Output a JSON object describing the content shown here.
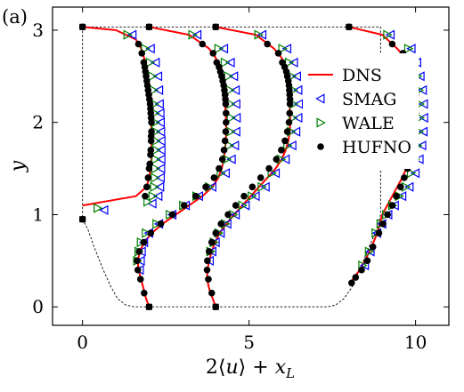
{
  "panel_label": "(a)",
  "chart_data": {
    "type": "scatter",
    "title": "",
    "xlabel": "2⟨u⟩ + x_L",
    "ylabel": "y",
    "xlim": [
      -0.9,
      11.0
    ],
    "ylim": [
      -0.2,
      3.25
    ],
    "xticks": [
      0,
      5,
      10
    ],
    "yticks": [
      0,
      1,
      2,
      3
    ],
    "legend_position": "upper-right",
    "colors": {
      "DNS": "#ff0000",
      "SMAG": "#0000ff",
      "WALE": "#008000",
      "HUFNO": "#000000",
      "domain": "#000000"
    },
    "domain_outline": {
      "x": [
        0,
        0,
        0.15,
        0.35,
        0.6,
        0.85,
        1.05,
        1.3,
        1.55,
        7.35,
        7.6,
        7.85,
        8.1,
        8.35,
        8.6,
        8.85,
        8.95,
        8.95,
        0
      ],
      "y": [
        3.035,
        0.95,
        0.85,
        0.65,
        0.42,
        0.22,
        0.09,
        0.02,
        0,
        0,
        0.02,
        0.09,
        0.22,
        0.42,
        0.65,
        0.85,
        1.0,
        3.035,
        3.035
      ]
    },
    "series": [
      {
        "name": "DNS",
        "style": "line",
        "profiles": [
          {
            "x": [
              0.0,
              1.0,
              1.6,
              1.76,
              1.85,
              1.89,
              1.92,
              1.96,
              2.0,
              2.03,
              2.05,
              2.06,
              2.07,
              2.07,
              2.07,
              2.07,
              2.05,
              2.0,
              1.92,
              1.6,
              0.0
            ],
            "y": [
              3.035,
              3.0,
              2.9,
              2.8,
              2.7,
              2.6,
              2.5,
              2.4,
              2.3,
              2.2,
              2.1,
              2.0,
              1.9,
              1.8,
              1.7,
              1.6,
              1.5,
              1.4,
              1.3,
              1.2,
              1.1
            ]
          },
          {
            "x": [
              2.0,
              3.2,
              3.8,
              4.0,
              4.1,
              4.15,
              4.2,
              4.25,
              4.28,
              4.3,
              4.31,
              4.32,
              4.3,
              4.28,
              4.24,
              4.18,
              4.08,
              3.9,
              3.6,
              3.2,
              2.8,
              2.4,
              2.08,
              1.85,
              1.72,
              1.66,
              1.68,
              1.76,
              1.9,
              2.0
            ],
            "y": [
              3.035,
              2.95,
              2.8,
              2.7,
              2.6,
              2.5,
              2.4,
              2.3,
              2.2,
              2.1,
              2.0,
              1.9,
              1.8,
              1.7,
              1.6,
              1.5,
              1.4,
              1.3,
              1.2,
              1.1,
              1.0,
              0.9,
              0.8,
              0.7,
              0.6,
              0.5,
              0.4,
              0.3,
              0.1,
              0.0
            ]
          },
          {
            "x": [
              4.0,
              5.2,
              5.75,
              5.98,
              6.08,
              6.13,
              6.17,
              6.2,
              6.22,
              6.23,
              6.24,
              6.22,
              6.18,
              6.1,
              5.98,
              5.8,
              5.55,
              5.3,
              5.05,
              4.8,
              4.55,
              4.32,
              4.12,
              3.98,
              3.88,
              3.8,
              3.75,
              3.74,
              3.8,
              3.9,
              4.0
            ],
            "y": [
              3.035,
              2.95,
              2.8,
              2.7,
              2.6,
              2.5,
              2.4,
              2.3,
              2.2,
              2.1,
              2.0,
              1.9,
              1.8,
              1.7,
              1.6,
              1.5,
              1.4,
              1.3,
              1.2,
              1.1,
              1.0,
              0.9,
              0.8,
              0.7,
              0.6,
              0.5,
              0.4,
              0.3,
              0.2,
              0.1,
              0.0
            ]
          },
          {
            "x": [
              8.0,
              9.0,
              9.45,
              9.7,
              9.82,
              9.9,
              9.95,
              9.98,
              10.0,
              10.01,
              10.0,
              9.98,
              9.95,
              9.9,
              9.82,
              9.72,
              9.6,
              9.45,
              9.3,
              9.15,
              9.0,
              8.85,
              8.68,
              8.48,
              8.28,
              8.08
            ],
            "y": [
              3.035,
              2.95,
              2.8,
              2.7,
              2.6,
              2.5,
              2.4,
              2.3,
              2.2,
              2.1,
              2.0,
              1.9,
              1.8,
              1.7,
              1.6,
              1.5,
              1.4,
              1.3,
              1.2,
              1.1,
              1.0,
              0.8,
              0.65,
              0.5,
              0.38,
              0.28
            ]
          }
        ]
      },
      {
        "name": "SMAG",
        "style": "left-triangle",
        "profiles": [
          {
            "x": [
              1.5,
              2.05,
              2.2,
              2.27,
              2.3,
              2.32,
              2.34,
              2.35,
              2.36,
              2.37,
              2.37,
              2.37,
              2.36,
              2.35,
              2.33,
              2.28,
              2.1,
              0.65
            ],
            "y": [
              2.95,
              2.8,
              2.65,
              2.5,
              2.35,
              2.2,
              2.1,
              2.0,
              1.9,
              1.8,
              1.7,
              1.6,
              1.5,
              1.4,
              1.3,
              1.2,
              1.12,
              1.05
            ]
          },
          {
            "x": [
              3.45,
              4.25,
              4.45,
              4.55,
              4.6,
              4.62,
              4.63,
              4.62,
              4.58,
              4.48,
              4.3,
              3.9,
              3.5,
              3.1,
              2.7,
              2.3,
              2.0,
              1.85,
              1.78,
              1.75,
              1.72
            ],
            "y": [
              2.95,
              2.8,
              2.65,
              2.5,
              2.35,
              2.2,
              2.05,
              1.9,
              1.75,
              1.6,
              1.45,
              1.3,
              1.2,
              1.1,
              1.0,
              0.9,
              0.8,
              0.7,
              0.6,
              0.5,
              0.4
            ]
          },
          {
            "x": [
              5.4,
              6.15,
              6.35,
              6.44,
              6.48,
              6.5,
              6.48,
              6.42,
              6.3,
              6.1,
              5.8,
              5.5,
              5.2,
              4.9,
              4.6,
              4.35,
              4.15,
              4.0,
              3.9,
              3.82
            ],
            "y": [
              2.95,
              2.8,
              2.65,
              2.5,
              2.35,
              2.2,
              2.05,
              1.9,
              1.75,
              1.6,
              1.45,
              1.3,
              1.2,
              1.1,
              1.0,
              0.9,
              0.8,
              0.7,
              0.6,
              0.5
            ]
          },
          {
            "x": [
              9.25,
              9.88,
              10.05,
              10.15,
              10.22,
              10.25,
              10.26,
              10.24,
              10.2,
              10.12,
              10.0,
              9.82,
              9.6,
              9.38,
              9.18,
              9.0,
              8.85,
              8.65,
              8.48
            ],
            "y": [
              2.95,
              2.8,
              2.65,
              2.5,
              2.35,
              2.2,
              2.05,
              1.9,
              1.75,
              1.6,
              1.45,
              1.3,
              1.2,
              1.1,
              1.0,
              0.9,
              0.8,
              0.6,
              0.45
            ]
          }
        ]
      },
      {
        "name": "WALE",
        "style": "right-triangle",
        "profiles": [
          {
            "x": [
              1.35,
              1.88,
              2.02,
              2.09,
              2.13,
              2.15,
              2.17,
              2.18,
              2.19,
              2.2,
              2.2,
              2.19,
              2.18,
              2.17,
              2.15,
              2.1,
              1.95,
              0.45
            ],
            "y": [
              2.95,
              2.8,
              2.65,
              2.5,
              2.35,
              2.2,
              2.1,
              2.0,
              1.9,
              1.8,
              1.7,
              1.6,
              1.5,
              1.4,
              1.3,
              1.2,
              1.14,
              1.07
            ]
          },
          {
            "x": [
              3.3,
              4.08,
              4.27,
              4.37,
              4.42,
              4.44,
              4.45,
              4.44,
              4.4,
              4.32,
              4.15,
              3.8,
              3.42,
              3.02,
              2.62,
              2.22,
              1.9,
              1.75,
              1.68,
              1.64
            ],
            "y": [
              2.95,
              2.8,
              2.65,
              2.5,
              2.35,
              2.2,
              2.05,
              1.9,
              1.75,
              1.6,
              1.45,
              1.3,
              1.2,
              1.1,
              1.0,
              0.9,
              0.8,
              0.7,
              0.6,
              0.5
            ]
          },
          {
            "x": [
              5.28,
              6.0,
              6.2,
              6.28,
              6.32,
              6.33,
              6.31,
              6.26,
              6.15,
              5.95,
              5.68,
              5.38,
              5.08,
              4.8,
              4.52,
              4.28,
              4.08,
              3.94,
              3.84
            ],
            "y": [
              2.95,
              2.8,
              2.65,
              2.5,
              2.35,
              2.2,
              2.05,
              1.9,
              1.75,
              1.6,
              1.45,
              1.3,
              1.2,
              1.1,
              1.0,
              0.9,
              0.8,
              0.7,
              0.6
            ]
          },
          {
            "x": [
              9.15,
              9.78,
              9.95,
              10.05,
              10.1,
              10.12,
              10.12,
              10.1,
              10.05,
              9.98,
              9.86,
              9.7,
              9.5,
              9.3,
              9.12,
              8.95,
              8.8,
              8.6,
              8.4
            ],
            "y": [
              2.95,
              2.8,
              2.65,
              2.5,
              2.35,
              2.2,
              2.05,
              1.9,
              1.75,
              1.6,
              1.45,
              1.3,
              1.2,
              1.1,
              1.0,
              0.9,
              0.8,
              0.6,
              0.45
            ]
          }
        ]
      },
      {
        "name": "HUFNO",
        "style": "circle",
        "profiles": [
          {
            "x": [
              0.0,
              1.68,
              1.78,
              1.84,
              1.87,
              1.89,
              1.91,
              1.93,
              1.95,
              1.97,
              1.99,
              2.01,
              2.03,
              2.04,
              2.05,
              2.06,
              2.07,
              2.07,
              2.06,
              2.06,
              2.05,
              2.04,
              2.02,
              2.0,
              1.97,
              1.93,
              1.88,
              0.0
            ],
            "y": [
              3.035,
              2.85,
              2.75,
              2.65,
              2.6,
              2.55,
              2.5,
              2.45,
              2.4,
              2.35,
              2.3,
              2.25,
              2.2,
              2.15,
              2.1,
              2.05,
              2.0,
              1.9,
              1.85,
              1.8,
              1.7,
              1.65,
              1.55,
              1.5,
              1.4,
              1.3,
              1.2,
              0.95
            ]
          },
          {
            "x": [
              2.0,
              3.6,
              3.92,
              4.03,
              4.1,
              4.14,
              4.18,
              4.21,
              4.24,
              4.26,
              4.28,
              4.29,
              4.3,
              4.31,
              4.31,
              4.3,
              4.28,
              4.25,
              4.2,
              4.1,
              3.95,
              3.7,
              3.4,
              3.05,
              2.7,
              2.35,
              2.05,
              1.84,
              1.7,
              1.64,
              1.66,
              1.74,
              1.85,
              2.0
            ],
            "y": [
              3.035,
              2.85,
              2.75,
              2.65,
              2.6,
              2.55,
              2.5,
              2.45,
              2.4,
              2.35,
              2.3,
              2.25,
              2.2,
              2.1,
              2.0,
              1.9,
              1.8,
              1.7,
              1.6,
              1.5,
              1.4,
              1.3,
              1.2,
              1.1,
              1.0,
              0.9,
              0.8,
              0.7,
              0.6,
              0.5,
              0.4,
              0.3,
              0.15,
              0.0
            ]
          },
          {
            "x": [
              4.0,
              5.55,
              5.88,
              6.0,
              6.07,
              6.12,
              6.15,
              6.18,
              6.2,
              6.21,
              6.22,
              6.23,
              6.23,
              6.22,
              6.2,
              6.15,
              6.08,
              5.97,
              5.82,
              5.6,
              5.35,
              5.1,
              4.85,
              4.6,
              4.37,
              4.16,
              4.0,
              3.88,
              3.8,
              3.75,
              3.74,
              3.78,
              3.88,
              4.0
            ],
            "y": [
              3.035,
              2.85,
              2.75,
              2.65,
              2.6,
              2.55,
              2.5,
              2.45,
              2.4,
              2.35,
              2.3,
              2.25,
              2.2,
              2.1,
              2.0,
              1.9,
              1.8,
              1.7,
              1.6,
              1.5,
              1.4,
              1.3,
              1.2,
              1.1,
              1.0,
              0.9,
              0.8,
              0.7,
              0.6,
              0.5,
              0.4,
              0.3,
              0.15,
              0.0
            ]
          },
          {
            "x": [
              8.0,
              9.3,
              9.62,
              9.75,
              9.83,
              9.88,
              9.92,
              9.95,
              9.97,
              9.99,
              10.0,
              10.0,
              10.0,
              9.99,
              9.97,
              9.94,
              9.9,
              9.84,
              9.76,
              9.66,
              9.55,
              9.42,
              9.3,
              9.16,
              9.02,
              8.9,
              8.72,
              8.55,
              8.38,
              8.2,
              8.08
            ],
            "y": [
              3.035,
              2.85,
              2.75,
              2.65,
              2.6,
              2.55,
              2.5,
              2.45,
              2.4,
              2.35,
              2.3,
              2.2,
              2.1,
              2.0,
              1.9,
              1.8,
              1.7,
              1.6,
              1.5,
              1.4,
              1.3,
              1.2,
              1.1,
              1.0,
              0.9,
              0.8,
              0.65,
              0.5,
              0.4,
              0.32,
              0.26
            ]
          }
        ]
      }
    ],
    "profile_end_markers": {
      "x": [
        0,
        2,
        2,
        4,
        4,
        8,
        0
      ],
      "y": [
        3.035,
        3.035,
        0,
        3.035,
        0,
        3.035,
        0.95
      ]
    }
  }
}
